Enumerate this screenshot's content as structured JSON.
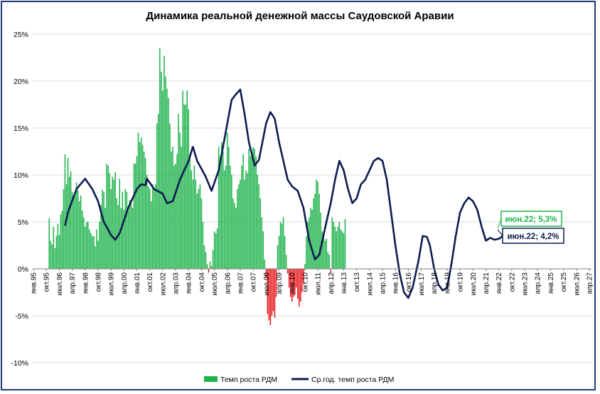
{
  "chart_data": {
    "type": "bar",
    "title": "Динамика реальной денежной массы Саудовской Аравии",
    "ylim": [
      -10,
      25
    ],
    "yticks": [
      -10,
      -5,
      0,
      5,
      10,
      15,
      20,
      25
    ],
    "ytick_labels": [
      "-10%",
      "-5%",
      "0%",
      "5%",
      "10%",
      "15%",
      "20%",
      "25%"
    ],
    "x_start": "янв.95",
    "x_end": "апр.27",
    "x_tick_labels": [
      "янв.95",
      "окт.95",
      "июл.96",
      "апр.97",
      "янв.98",
      "окт.98",
      "июл.99",
      "апр.00",
      "янв.01",
      "окт.01",
      "июл.02",
      "апр.03",
      "янв.04",
      "окт.04",
      "июл.05",
      "апр.06",
      "янв.07",
      "окт.07",
      "июл.08",
      "апр.09",
      "янв.10",
      "окт.10",
      "июл.11",
      "апр.12",
      "янв.13",
      "окт.13",
      "июл.14",
      "апр.15",
      "янв.16",
      "окт.16",
      "июл.17",
      "апр.18",
      "янв.19",
      "окт.19",
      "июл.20",
      "апр.21",
      "янв.22",
      "окт.22",
      "июл.23",
      "апр.24",
      "янв.25",
      "окт.25",
      "июл.26",
      "апр.27"
    ],
    "grid": "horizontal",
    "legend_position": "bottom",
    "colors": {
      "positive": "#21b34d",
      "negative": "#e8191f",
      "line": "#0d1c4f"
    },
    "series": [
      {
        "name": "Темп роста РДМ",
        "kind": "bar",
        "start": "дек.95",
        "values": [
          5.4,
          3.0,
          2.6,
          4.5,
          2.2,
          3.5,
          4.8,
          3.6,
          5.8,
          6.2,
          8.5,
          12.2,
          9.0,
          11.8,
          9.8,
          10.4,
          8.2,
          7.5,
          7.8,
          9.2,
          8.4,
          7.2,
          7.8,
          6.2,
          5.5,
          4.5,
          5.0,
          5.0,
          4.2,
          3.8,
          3.5,
          3.5,
          2.4,
          4.2,
          3.0,
          5.0,
          6.8,
          8.4,
          8.2,
          6.5,
          11.2,
          11.0,
          10.2,
          8.5,
          9.8,
          9.5,
          10.3,
          7.5,
          6.8,
          9.6,
          6.5,
          8.2,
          6.3,
          8.5,
          8.2,
          6.2,
          7.3,
          7.0,
          6.5,
          11.2,
          11.2,
          12.0,
          14.5,
          13.5,
          14.0,
          13.2,
          12.5,
          11.8,
          10.0,
          8.8,
          8.5,
          7.2,
          9.0,
          8.6,
          9.0,
          15.5,
          16.5,
          23.5,
          21.0,
          19.0,
          22.7,
          20.5,
          19.2,
          18.2,
          15.5,
          12.5,
          13.0,
          11.0,
          11.2,
          12.2,
          16.5,
          14.5,
          13.0,
          19.0,
          17.5,
          17.5,
          19.0,
          17.0,
          12.0,
          10.5,
          9.5,
          11.0,
          9.5,
          8.0,
          8.5,
          9.0,
          7.5,
          5.0,
          2.5,
          1.8,
          0.5,
          -0.4,
          0.8,
          0.3,
          2.0,
          4.0,
          3.8,
          4.3,
          13.0,
          12.0,
          13.5,
          12.5,
          10.5,
          11.0,
          14.5,
          13.0,
          11.0,
          10.0,
          7.5,
          7.0,
          6.5,
          8.5,
          9.0,
          9.5,
          11.0,
          12.2,
          9.5,
          10.5,
          10.2,
          12.8,
          12.0,
          12.5,
          13.0,
          12.8,
          12.0,
          10.0,
          9.0,
          7.5,
          5.5,
          4.0,
          1.0,
          -1.0,
          -4.8,
          -5.5,
          -6.0,
          -5.0,
          -4.5,
          -5.2,
          -3.0,
          2.5,
          3.5,
          5.0,
          4.8,
          5.5,
          3.5,
          1.5,
          -0.5,
          -2.0,
          -3.0,
          -3.5,
          -3.0,
          -2.8,
          -2.0,
          -3.2,
          -4.0,
          -3.5,
          -2.5,
          -1.5,
          0.5,
          3.5,
          5.0,
          5.5,
          6.5,
          6.3,
          7.5,
          8.0,
          9.5,
          9.3,
          8.0,
          6.0,
          4.0,
          3.5,
          3.0,
          3.2,
          1.8,
          1.5,
          -0.5,
          5.5,
          5.0,
          4.5,
          4.0,
          4.5,
          5.0,
          4.2,
          4.0,
          3.8,
          5.3
        ],
        "annotation": "июн.22; 5,3%"
      },
      {
        "name": "Ср.год. темп роста РДМ",
        "kind": "line",
        "points": [
          [
            "ноя.96",
            4.6
          ],
          [
            "янв.97",
            6.0
          ],
          [
            "июл.97",
            8.5
          ],
          [
            "янв.98",
            9.6
          ],
          [
            "июн.98",
            8.5
          ],
          [
            "окт.98",
            7.2
          ],
          [
            "фев.99",
            5.0
          ],
          [
            "июл.99",
            3.6
          ],
          [
            "окт.99",
            3.1
          ],
          [
            "янв.00",
            3.8
          ],
          [
            "июл.00",
            6.5
          ],
          [
            "янв.01",
            8.5
          ],
          [
            "апр.01",
            9.0
          ],
          [
            "июл.01",
            8.9
          ],
          [
            "авг.01",
            9.6
          ],
          [
            "янв.02",
            8.5
          ],
          [
            "июл.02",
            8.0
          ],
          [
            "окт.02",
            7.0
          ],
          [
            "фев.03",
            7.2
          ],
          [
            "июл.03",
            9.5
          ],
          [
            "янв.04",
            11.5
          ],
          [
            "апр.04",
            13.0
          ],
          [
            "июл.04",
            11.5
          ],
          [
            "янв.05",
            9.8
          ],
          [
            "май.05",
            8.3
          ],
          [
            "окт.05",
            10.5
          ],
          [
            "янв.06",
            13.0
          ],
          [
            "апр.06",
            15.5
          ],
          [
            "июл.06",
            18.0
          ],
          [
            "окт.06",
            18.6
          ],
          [
            "янв.07",
            19.1
          ],
          [
            "апр.07",
            16.5
          ],
          [
            "июл.07",
            13.5
          ],
          [
            "ноя.07",
            11.0
          ],
          [
            "фев.08",
            11.6
          ],
          [
            "июл.08",
            15.5
          ],
          [
            "окт.08",
            16.7
          ],
          [
            "янв.09",
            16.0
          ],
          [
            "апр.09",
            13.5
          ],
          [
            "июл.09",
            11.5
          ],
          [
            "окт.09",
            9.5
          ],
          [
            "янв.10",
            8.8
          ],
          [
            "май.10",
            8.3
          ],
          [
            "сен.10",
            6.5
          ],
          [
            "янв.11",
            3.0
          ],
          [
            "май.11",
            1.0
          ],
          [
            "авг.11",
            1.5
          ],
          [
            "янв.12",
            5.0
          ],
          [
            "апр.12",
            7.0
          ],
          [
            "июл.12",
            9.5
          ],
          [
            "окт.12",
            11.5
          ],
          [
            "янв.13",
            10.5
          ],
          [
            "апр.13",
            8.5
          ],
          [
            "июл.13",
            7.0
          ],
          [
            "окт.13",
            7.5
          ],
          [
            "янв.14",
            9.0
          ],
          [
            "апр.14",
            9.5
          ],
          [
            "июл.14",
            10.5
          ],
          [
            "окт.14",
            11.5
          ],
          [
            "янв.15",
            11.8
          ],
          [
            "апр.15",
            11.5
          ],
          [
            "июл.15",
            9.5
          ],
          [
            "окт.15",
            6.0
          ],
          [
            "янв.16",
            2.5
          ],
          [
            "апр.16",
            -0.5
          ],
          [
            "июл.16",
            -2.5
          ],
          [
            "окт.16",
            -3.1
          ],
          [
            "янв.17",
            -2.0
          ],
          [
            "май.17",
            0.8
          ],
          [
            "авг.17",
            3.5
          ],
          [
            "ноя.17",
            3.4
          ],
          [
            "янв.18",
            2.5
          ],
          [
            "апр.18",
            0.0
          ],
          [
            "июл.18",
            -1.7
          ],
          [
            "окт.18",
            -2.3
          ],
          [
            "янв.19",
            -2.0
          ],
          [
            "апр.19",
            0.5
          ],
          [
            "июл.19",
            3.5
          ],
          [
            "окт.19",
            6.0
          ],
          [
            "янв.20",
            7.0
          ],
          [
            "апр.20",
            7.6
          ],
          [
            "июл.20",
            7.2
          ],
          [
            "окт.20",
            6.3
          ],
          [
            "янв.21",
            4.5
          ],
          [
            "апр.21",
            3.0
          ],
          [
            "июл.21",
            3.3
          ],
          [
            "окт.21",
            3.1
          ],
          [
            "янв.22",
            3.2
          ],
          [
            "мар.22",
            3.4
          ],
          [
            "июн.22",
            4.2
          ]
        ],
        "annotation": "июн.22; 4,2%"
      }
    ]
  }
}
